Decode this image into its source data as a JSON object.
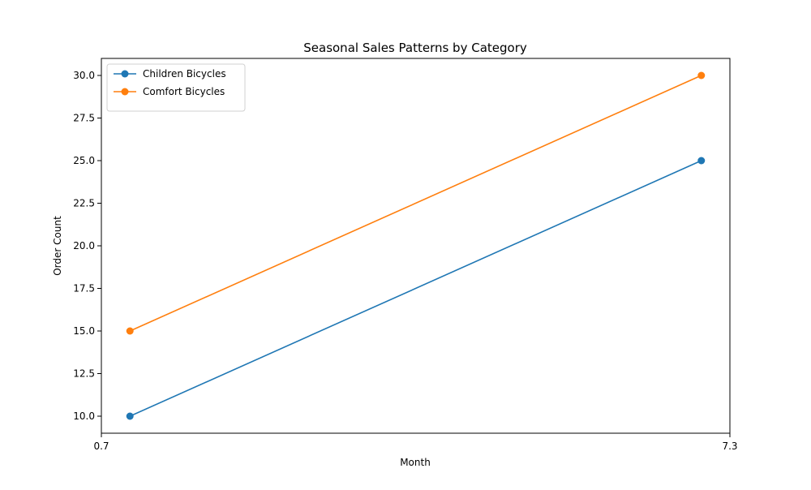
{
  "chart_data": {
    "type": "line",
    "title": "Seasonal Sales Patterns by Category",
    "xlabel": "Month",
    "ylabel": "Order Count",
    "xlim": [
      0.7,
      7.3
    ],
    "ylim": [
      9.0,
      31.0
    ],
    "xticks": [
      "0.7",
      "7.3"
    ],
    "yticks": [
      10.0,
      12.5,
      15.0,
      17.5,
      20.0,
      22.5,
      25.0,
      27.5,
      30.0
    ],
    "ytick_labels": [
      "10.0",
      "12.5",
      "15.0",
      "17.5",
      "20.0",
      "22.5",
      "25.0",
      "27.5",
      "30.0"
    ],
    "x": [
      1,
      7
    ],
    "series": [
      {
        "name": "Children Bicycles",
        "values": [
          10,
          25
        ],
        "color": "#1f77b4"
      },
      {
        "name": "Comfort Bicycles",
        "values": [
          15,
          30
        ],
        "color": "#ff7f0e"
      }
    ],
    "grid": false,
    "legend_position": "top-left",
    "markers": "circle"
  }
}
